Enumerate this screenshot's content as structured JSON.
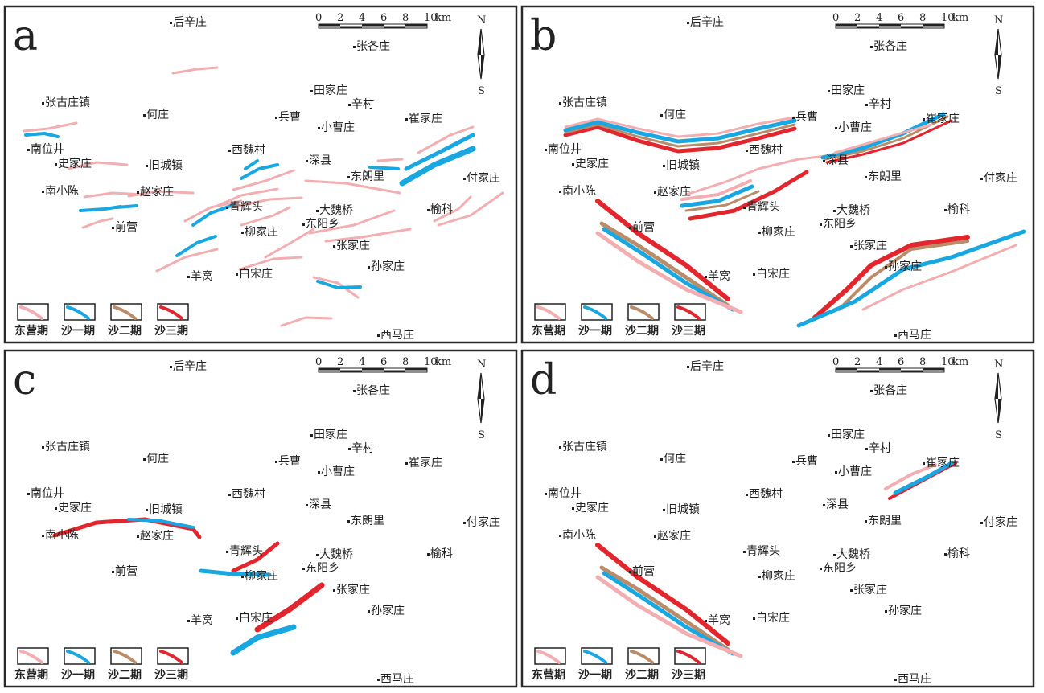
{
  "colors": {
    "dongying": "#f2aeb0",
    "sha1": "#18a7e0",
    "sha2": "#b98c6a",
    "sha3": "#e3262e",
    "frame": "#2a2a2a"
  },
  "panels": [
    {
      "letter": "a"
    },
    {
      "letter": "b"
    },
    {
      "letter": "c"
    },
    {
      "letter": "d"
    }
  ],
  "places": [
    {
      "id": "houxinzhuang",
      "name": "后辛庄"
    },
    {
      "id": "zhanggezhuang",
      "name": "张各庄"
    },
    {
      "id": "tianjiazhuang",
      "name": "田家庄"
    },
    {
      "id": "xincun",
      "name": "辛村"
    },
    {
      "id": "zhangguzhuangzhen",
      "name": "张古庄镇"
    },
    {
      "id": "hezhuang",
      "name": "何庄"
    },
    {
      "id": "bingcao",
      "name": "兵曹"
    },
    {
      "id": "cuijiazhuang",
      "name": "崔家庄"
    },
    {
      "id": "xiaocaozhuang",
      "name": "小曹庄"
    },
    {
      "id": "nanweijing",
      "name": "南位井"
    },
    {
      "id": "xiweicun",
      "name": "西魏村"
    },
    {
      "id": "shijiazhuang",
      "name": "史家庄"
    },
    {
      "id": "jiuchengzhen",
      "name": "旧城镇"
    },
    {
      "id": "shenxian",
      "name": "深县"
    },
    {
      "id": "donglangli",
      "name": "东朗里"
    },
    {
      "id": "fujiazhuang",
      "name": "付家庄"
    },
    {
      "id": "nanxiaochen",
      "name": "南小陈"
    },
    {
      "id": "zhaojiazhuang",
      "name": "赵家庄"
    },
    {
      "id": "qinghuitou",
      "name": "青辉头"
    },
    {
      "id": "daweiqiao",
      "name": "大魏桥"
    },
    {
      "id": "yuke",
      "name": "榆科"
    },
    {
      "id": "dongyangxiang",
      "name": "东阳乡"
    },
    {
      "id": "qianying",
      "name": "前营"
    },
    {
      "id": "liujiazhuang",
      "name": "柳家庄"
    },
    {
      "id": "zhangjiazhuang",
      "name": "张家庄"
    },
    {
      "id": "sunjiazhuang",
      "name": "孙家庄"
    },
    {
      "id": "yangwo",
      "name": "羊窝"
    },
    {
      "id": "baisongzhuang",
      "name": "白宋庄"
    },
    {
      "id": "ximazhuang",
      "name": "西马庄"
    }
  ],
  "scale_bar": {
    "ticks": [
      "0",
      "2",
      "4",
      "6",
      "8",
      "10"
    ],
    "unit": "km"
  },
  "compass": {
    "north": "N",
    "south": "S"
  },
  "legend": [
    {
      "key": "dongying",
      "label": "东营期"
    },
    {
      "key": "sha1",
      "label": "沙一期"
    },
    {
      "key": "sha2",
      "label": "沙二期"
    },
    {
      "key": "sha3",
      "label": "沙三期"
    }
  ]
}
